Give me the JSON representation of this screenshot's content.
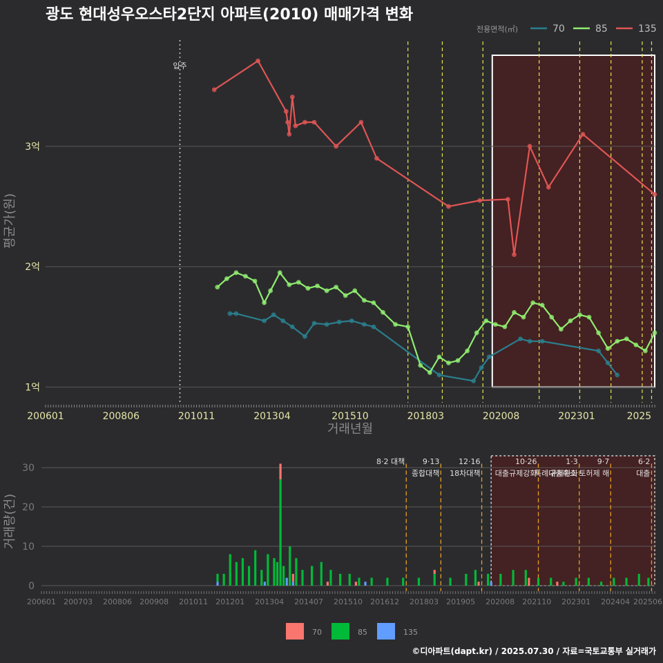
{
  "title": "광도 현대성우오스타2단지 아파트(2010) 매매가격 변화",
  "footer": "©디아파트(dapt.kr) / 2025.07.30 / 자료=국토교통부 실거래가",
  "colors": {
    "bg": "#2b2b2d",
    "grid": "#5a5a5a",
    "s70": "#2a7f8e",
    "s85": "#90ee70",
    "s135": "#e05555",
    "bar70": "#f8766d",
    "bar85": "#00ba38",
    "bar135": "#619cff",
    "policy": "#e8e84a",
    "policyBar": "#e8a020",
    "region": "#5a1a1a"
  },
  "chart_data": [
    {
      "type": "line",
      "ylabel": "평균가(원)",
      "xlabel": "거래년월",
      "x_ticks": [
        "200601",
        "200806",
        "201011",
        "201304",
        "201510",
        "201803",
        "202008",
        "202301",
        "2025"
      ],
      "y_ticks": [
        "1억",
        "2억",
        "3억"
      ],
      "ylim": [
        0.87,
        3.9
      ],
      "legend_title": "전용면적(㎡)",
      "annotation_move_in": {
        "date": 2010.3,
        "label": "입주"
      },
      "policy_dates": [
        2017.6,
        2018.7,
        2020.0,
        2021.8,
        2023.1,
        2024.1,
        2025.1,
        2025.4
      ],
      "highlight_region": [
        2020.3,
        2025.5
      ],
      "series": [
        {
          "name": "70",
          "x": [
            2011.9,
            2012.1,
            2013.0,
            2013.3,
            2013.6,
            2013.9,
            2014.3,
            2014.6,
            2015.0,
            2015.4,
            2015.8,
            2016.2,
            2016.5,
            2018.6,
            2019.7,
            2019.95,
            2020.2,
            2021.2,
            2021.5,
            2021.9,
            2023.7,
            2024.0,
            2024.3
          ],
          "y": [
            1.61,
            1.61,
            1.55,
            1.6,
            1.55,
            1.5,
            1.42,
            1.53,
            1.52,
            1.54,
            1.55,
            1.52,
            1.5,
            1.1,
            1.05,
            1.16,
            1.25,
            1.4,
            1.38,
            1.38,
            1.3,
            1.2,
            1.1
          ]
        },
        {
          "name": "85",
          "x": [
            2011.5,
            2011.8,
            2012.1,
            2012.4,
            2012.7,
            2013.0,
            2013.2,
            2013.5,
            2013.8,
            2014.1,
            2014.4,
            2014.7,
            2015.0,
            2015.3,
            2015.6,
            2015.9,
            2016.2,
            2016.5,
            2016.8,
            2017.2,
            2017.6,
            2018.0,
            2018.3,
            2018.6,
            2018.9,
            2019.2,
            2019.5,
            2019.8,
            2020.1,
            2020.4,
            2020.7,
            2021.0,
            2021.3,
            2021.6,
            2021.9,
            2022.2,
            2022.5,
            2022.8,
            2023.1,
            2023.4,
            2023.7,
            2024.0,
            2024.3,
            2024.6,
            2024.9,
            2025.2,
            2025.5
          ],
          "y": [
            1.83,
            1.9,
            1.95,
            1.92,
            1.88,
            1.7,
            1.8,
            1.95,
            1.85,
            1.87,
            1.82,
            1.84,
            1.8,
            1.83,
            1.76,
            1.8,
            1.72,
            1.7,
            1.62,
            1.52,
            1.5,
            1.18,
            1.12,
            1.25,
            1.2,
            1.22,
            1.3,
            1.45,
            1.55,
            1.52,
            1.5,
            1.62,
            1.58,
            1.7,
            1.68,
            1.58,
            1.48,
            1.55,
            1.6,
            1.58,
            1.45,
            1.32,
            1.38,
            1.4,
            1.35,
            1.3,
            1.45
          ]
        },
        {
          "name": "135",
          "x": [
            2011.4,
            2012.8,
            2013.7,
            2013.75,
            2013.8,
            2013.9,
            2014.0,
            2014.3,
            2014.6,
            2015.3,
            2016.1,
            2016.6,
            2018.9,
            2019.9,
            2020.8,
            2021.0,
            2021.5,
            2022.1,
            2023.2,
            2025.5
          ],
          "y": [
            3.47,
            3.71,
            3.29,
            3.2,
            3.1,
            3.41,
            3.17,
            3.2,
            3.2,
            3.0,
            3.2,
            2.9,
            2.5,
            2.55,
            2.56,
            2.1,
            3.0,
            2.66,
            3.1,
            2.6
          ]
        }
      ]
    },
    {
      "type": "bar",
      "ylabel": "거래량(건)",
      "x_ticks": [
        "200601",
        "200703",
        "200806",
        "200908",
        "201011",
        "201201",
        "201304",
        "201407",
        "201510",
        "201612",
        "201803",
        "201905",
        "202008",
        "202110",
        "202301",
        "202404",
        "202506"
      ],
      "y_ticks": [
        "0",
        "10",
        "20",
        "30"
      ],
      "ylim": [
        0,
        33
      ],
      "legend": [
        "70",
        "85",
        "135"
      ],
      "policy_annotations": [
        {
          "date": 2017.6,
          "label": "8·2 대책"
        },
        {
          "date": 2018.7,
          "label": "9·13"
        },
        {
          "date": 2018.7,
          "label": "종합대책"
        },
        {
          "date": 2020.0,
          "label": "12·16"
        },
        {
          "date": 2020.0,
          "label": "18차대책"
        },
        {
          "date": 2021.8,
          "label": "10·26"
        },
        {
          "date": 2021.8,
          "label": "대출규제강화"
        },
        {
          "date": 2023.1,
          "label": "1·3"
        },
        {
          "date": 2023.1,
          "label": "규제완화"
        },
        {
          "date": 2024.1,
          "label": "9·7"
        },
        {
          "date": 2024.1,
          "label": "특례대출축소 토허제 해"
        },
        {
          "date": 2025.4,
          "label": "6·2"
        },
        {
          "date": 2025.4,
          "label": "대출"
        }
      ],
      "series": [
        {
          "name": "70",
          "x": [
            2013.6,
            2014.0,
            2015.1,
            2016.0,
            2018.5,
            2019.9,
            2021.5,
            2022.4
          ],
          "values": [
            4,
            2,
            1,
            1,
            1,
            1,
            2,
            1
          ]
        },
        {
          "name": "85",
          "x": [
            2011.6,
            2011.8,
            2012.0,
            2012.2,
            2012.4,
            2012.6,
            2012.8,
            2013.0,
            2013.2,
            2013.4,
            2013.5,
            2013.6,
            2013.7,
            2013.9,
            2014.1,
            2014.3,
            2014.6,
            2014.9,
            2015.2,
            2015.5,
            2015.8,
            2016.1,
            2016.5,
            2017.0,
            2017.5,
            2018.0,
            2018.5,
            2019.0,
            2019.5,
            2019.8,
            2020.2,
            2020.6,
            2021.0,
            2021.4,
            2021.8,
            2022.2,
            2022.6,
            2023.0,
            2023.4,
            2023.8,
            2024.2,
            2024.6,
            2025.0,
            2025.3
          ],
          "values": [
            2,
            3,
            8,
            6,
            7,
            5,
            9,
            4,
            8,
            7,
            6,
            27,
            5,
            10,
            7,
            4,
            5,
            6,
            4,
            3,
            3,
            2,
            2,
            2,
            2,
            2,
            3,
            2,
            3,
            4,
            3,
            3,
            4,
            4,
            2,
            2,
            1,
            2,
            2,
            1,
            2,
            2,
            3,
            2
          ]
        },
        {
          "name": "135",
          "x": [
            2011.6,
            2013.1,
            2013.8,
            2014.0,
            2016.3,
            2020.3
          ],
          "values": [
            1,
            1,
            2,
            1,
            1,
            1
          ]
        }
      ]
    }
  ]
}
